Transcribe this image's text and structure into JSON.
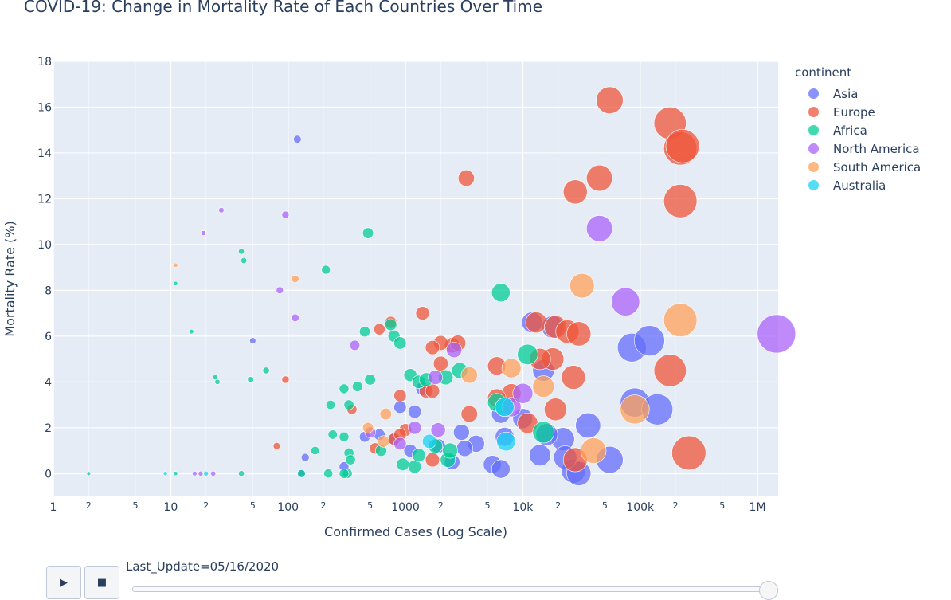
{
  "title": "COVID-19: Change in Mortality Rate of Each Countries Over Time",
  "legend": {
    "title": "continent",
    "items": [
      {
        "name": "Asia",
        "color": "#636efa"
      },
      {
        "name": "Europe",
        "color": "#ef553b"
      },
      {
        "name": "Africa",
        "color": "#00cc96"
      },
      {
        "name": "North America",
        "color": "#ab63fa"
      },
      {
        "name": "South America",
        "color": "#ffa15a"
      },
      {
        "name": "Australia",
        "color": "#19d3f3"
      }
    ]
  },
  "slider": {
    "label": "Last_Update=05/16/2020",
    "value": 1.0,
    "play_icon": "play-icon",
    "stop_icon": "stop-icon"
  },
  "chart_data": {
    "type": "scatter",
    "xlabel": "Confirmed Cases (Log Scale)",
    "ylabel": "Mortality Rate (%)",
    "xscale": "log",
    "xlim": [
      1,
      1500000
    ],
    "ylim": [
      -1,
      18
    ],
    "grid": true,
    "legend_position": "right",
    "x_major_ticks": [
      {
        "v": 1,
        "label": "1"
      },
      {
        "v": 10,
        "label": "10"
      },
      {
        "v": 100,
        "label": "100"
      },
      {
        "v": 1000,
        "label": "1000"
      },
      {
        "v": 10000,
        "label": "10k"
      },
      {
        "v": 100000,
        "label": "100k"
      },
      {
        "v": 1000000,
        "label": "1M"
      }
    ],
    "x_minor_ticks": [
      {
        "v": 2,
        "label": "2"
      },
      {
        "v": 5,
        "label": "5"
      },
      {
        "v": 20,
        "label": "2"
      },
      {
        "v": 50,
        "label": "5"
      },
      {
        "v": 200,
        "label": "2"
      },
      {
        "v": 500,
        "label": "5"
      },
      {
        "v": 2000,
        "label": "2"
      },
      {
        "v": 5000,
        "label": "5"
      },
      {
        "v": 20000,
        "label": "2"
      },
      {
        "v": 50000,
        "label": "5"
      },
      {
        "v": 200000,
        "label": "2"
      },
      {
        "v": 500000,
        "label": "5"
      }
    ],
    "y_ticks": [
      0,
      2,
      4,
      6,
      8,
      10,
      12,
      14,
      16,
      18
    ],
    "series": [
      {
        "name": "Asia",
        "color": "#636efa",
        "points": [
          [
            120,
            14.6
          ],
          [
            50,
            5.8
          ],
          [
            140,
            0.7
          ],
          [
            1400,
            3.7
          ],
          [
            1200,
            2.7
          ],
          [
            900,
            2.9
          ],
          [
            3000,
            1.8
          ],
          [
            4000,
            1.3
          ],
          [
            12000,
            6.6
          ],
          [
            15000,
            4.5
          ],
          [
            18000,
            6.4
          ],
          [
            6500,
            2.6
          ],
          [
            7000,
            1.6
          ],
          [
            10000,
            2.4
          ],
          [
            22000,
            1.5
          ],
          [
            27000,
            0.1
          ],
          [
            30000,
            0.0
          ],
          [
            36000,
            2.1
          ],
          [
            55000,
            0.6
          ],
          [
            85000,
            5.5
          ],
          [
            120000,
            5.8
          ],
          [
            90000,
            3.1
          ],
          [
            140000,
            2.8
          ],
          [
            450,
            1.6
          ],
          [
            2500,
            0.5
          ],
          [
            5500,
            0.4
          ],
          [
            6500,
            0.2
          ],
          [
            14000,
            0.8
          ],
          [
            3200,
            1.1
          ],
          [
            1900,
            1.2
          ],
          [
            800,
            1.5
          ],
          [
            1100,
            1.0
          ],
          [
            600,
            1.7
          ],
          [
            16000,
            1.7
          ],
          [
            23000,
            0.7
          ],
          [
            130,
            0.0
          ],
          [
            300,
            0.3
          ]
        ]
      },
      {
        "name": "Europe",
        "color": "#ef553b",
        "points": [
          [
            55000,
            16.3
          ],
          [
            180000,
            15.3
          ],
          [
            220000,
            14.2
          ],
          [
            230000,
            14.3
          ],
          [
            45000,
            12.9
          ],
          [
            28000,
            12.3
          ],
          [
            3300,
            12.9
          ],
          [
            220000,
            11.9
          ],
          [
            180000,
            4.5
          ],
          [
            260000,
            0.9
          ],
          [
            13000,
            6.6
          ],
          [
            19000,
            6.4
          ],
          [
            24000,
            6.2
          ],
          [
            30000,
            6.1
          ],
          [
            18000,
            5.0
          ],
          [
            14000,
            5.0
          ],
          [
            27000,
            4.2
          ],
          [
            8000,
            3.5
          ],
          [
            6000,
            3.3
          ],
          [
            19000,
            2.8
          ],
          [
            11000,
            2.2
          ],
          [
            3500,
            2.6
          ],
          [
            1500,
            3.6
          ],
          [
            1700,
            3.6
          ],
          [
            900,
            3.4
          ],
          [
            2500,
            5.6
          ],
          [
            2000,
            5.7
          ],
          [
            2800,
            5.7
          ],
          [
            1400,
            7.0
          ],
          [
            750,
            6.6
          ],
          [
            600,
            6.3
          ],
          [
            1700,
            5.5
          ],
          [
            2000,
            4.8
          ],
          [
            6000,
            4.7
          ],
          [
            28000,
            0.6
          ],
          [
            1700,
            0.6
          ],
          [
            350,
            2.8
          ],
          [
            800,
            1.5
          ],
          [
            550,
            1.1
          ],
          [
            1000,
            1.9
          ],
          [
            80,
            1.2
          ],
          [
            95,
            4.1
          ],
          [
            900,
            1.7
          ]
        ]
      },
      {
        "name": "Africa",
        "color": "#00cc96",
        "points": [
          [
            2,
            0.0
          ],
          [
            11,
            0.0
          ],
          [
            11,
            8.3
          ],
          [
            15,
            6.2
          ],
          [
            24,
            4.2
          ],
          [
            25,
            4.0
          ],
          [
            40,
            9.7
          ],
          [
            42,
            9.3
          ],
          [
            48,
            4.1
          ],
          [
            65,
            4.5
          ],
          [
            210,
            8.9
          ],
          [
            450,
            6.2
          ],
          [
            480,
            10.5
          ],
          [
            500,
            4.1
          ],
          [
            750,
            6.5
          ],
          [
            800,
            6.0
          ],
          [
            900,
            5.7
          ],
          [
            1100,
            4.3
          ],
          [
            1300,
            4.0
          ],
          [
            1500,
            4.1
          ],
          [
            2200,
            4.2
          ],
          [
            2900,
            4.5
          ],
          [
            6500,
            7.9
          ],
          [
            11000,
            5.2
          ],
          [
            15000,
            1.8
          ],
          [
            6000,
            3.1
          ],
          [
            7000,
            2.9
          ],
          [
            1200,
            0.3
          ],
          [
            1300,
            0.8
          ],
          [
            2300,
            0.6
          ],
          [
            1800,
            1.2
          ],
          [
            2400,
            1.0
          ],
          [
            620,
            1.0
          ],
          [
            330,
            0.9
          ],
          [
            300,
            1.6
          ],
          [
            240,
            1.7
          ],
          [
            230,
            3.0
          ],
          [
            330,
            3.0
          ],
          [
            390,
            3.8
          ],
          [
            300,
            3.7
          ],
          [
            170,
            1.0
          ],
          [
            340,
            0.6
          ],
          [
            320,
            0.0
          ],
          [
            300,
            0.0
          ],
          [
            220,
            0.0
          ],
          [
            40,
            0.0
          ],
          [
            130,
            0.0
          ],
          [
            950,
            0.4
          ]
        ]
      },
      {
        "name": "North America",
        "color": "#ab63fa",
        "points": [
          [
            1450000,
            6.1
          ],
          [
            75000,
            7.5
          ],
          [
            45000,
            10.7
          ],
          [
            27,
            11.5
          ],
          [
            19,
            10.5
          ],
          [
            95,
            11.3
          ],
          [
            85,
            8.0
          ],
          [
            115,
            6.8
          ],
          [
            370,
            5.6
          ],
          [
            2600,
            5.4
          ],
          [
            1800,
            4.2
          ],
          [
            8000,
            2.9
          ],
          [
            10000,
            3.5
          ],
          [
            1900,
            1.9
          ],
          [
            1200,
            2.0
          ],
          [
            900,
            1.3
          ],
          [
            500,
            1.8
          ],
          [
            16,
            0.0
          ],
          [
            18,
            0.0
          ],
          [
            23,
            0.0
          ]
        ]
      },
      {
        "name": "South America",
        "color": "#ffa15a",
        "points": [
          [
            11,
            9.1
          ],
          [
            115,
            8.5
          ],
          [
            32000,
            8.2
          ],
          [
            220000,
            6.7
          ],
          [
            15000,
            3.8
          ],
          [
            90000,
            2.8
          ],
          [
            40000,
            1.0
          ],
          [
            3500,
            4.3
          ],
          [
            8000,
            4.6
          ],
          [
            680,
            2.6
          ],
          [
            650,
            1.4
          ],
          [
            480,
            2.0
          ]
        ]
      },
      {
        "name": "Australia",
        "color": "#19d3f3",
        "points": [
          [
            9,
            0.0
          ],
          [
            20,
            0.0
          ],
          [
            1600,
            1.4
          ],
          [
            7200,
            1.4
          ],
          [
            7000,
            2.9
          ]
        ]
      }
    ]
  }
}
